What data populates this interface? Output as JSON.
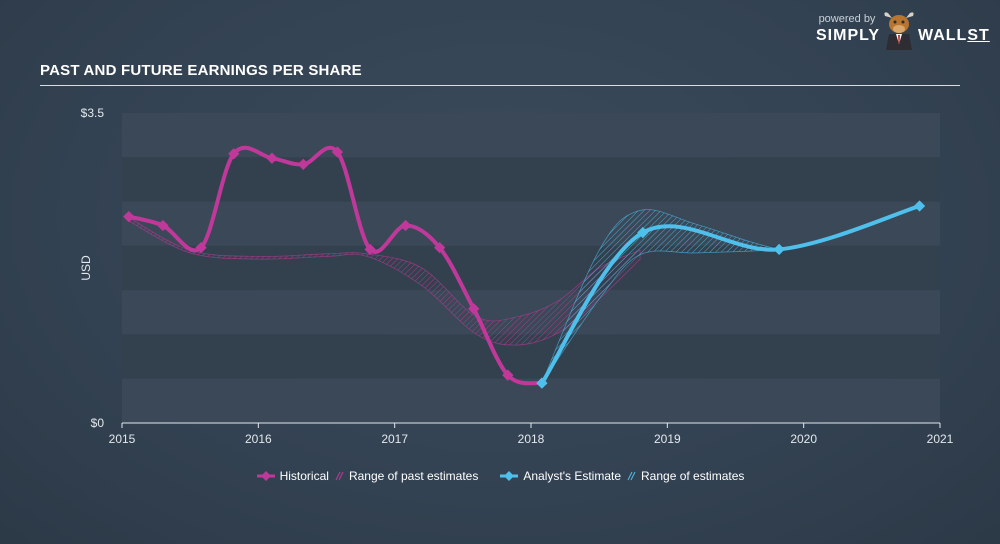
{
  "header": {
    "title": "PAST AND FUTURE EARNINGS PER SHARE"
  },
  "brand": {
    "powered": "powered by",
    "name_left": "SIMPLY",
    "name_right_wall": "WALL",
    "name_right_st": "ST",
    "mascot_icon": "bull-icon"
  },
  "colors": {
    "historical": "#c0399a",
    "estimate": "#4fc0ec",
    "band_alt": "#3a4857",
    "band_base": "#33414f"
  },
  "chart_data": {
    "type": "line",
    "title": "PAST AND FUTURE EARNINGS PER SHARE",
    "ylabel": "USD",
    "xlim": [
      2015,
      2021
    ],
    "ylim": [
      0,
      3.5
    ],
    "y_tick_labels": [
      "$0",
      "$3.5"
    ],
    "x_tick_labels": [
      "2015",
      "2016",
      "2017",
      "2018",
      "2019",
      "2020",
      "2021"
    ],
    "grid": "alternating horizontal bands",
    "legend_placement": "bottom-center",
    "legend": [
      "Historical",
      "Range of past estimates",
      "Analyst's Estimate",
      "Range of estimates"
    ],
    "series": [
      {
        "name": "Historical",
        "x": [
          2015.05,
          2015.3,
          2015.58,
          2015.82,
          2016.1,
          2016.33,
          2016.58,
          2016.82,
          2017.08,
          2017.33,
          2017.58,
          2017.83,
          2018.08
        ],
        "values": [
          2.33,
          2.23,
          1.98,
          3.04,
          2.99,
          2.92,
          3.06,
          1.96,
          2.23,
          1.98,
          1.29,
          0.54,
          0.45
        ]
      },
      {
        "name": "Analyst's Estimate",
        "x": [
          2018.08,
          2018.82,
          2019.82,
          2020.85
        ],
        "values": [
          0.45,
          2.15,
          1.96,
          2.45
        ]
      },
      {
        "name": "Range of past estimates",
        "x": [
          2015.05,
          2015.5,
          2016.0,
          2016.5,
          2016.8,
          2017.2,
          2017.6,
          2017.9,
          2018.2,
          2018.5,
          2018.8
        ],
        "low": [
          2.28,
          1.92,
          1.85,
          1.88,
          1.88,
          1.55,
          1.0,
          0.88,
          1.02,
          1.4,
          1.85
        ],
        "high": [
          2.32,
          1.95,
          1.88,
          1.91,
          1.91,
          1.75,
          1.2,
          1.2,
          1.38,
          1.75,
          1.95
        ]
      },
      {
        "name": "Range of estimates",
        "x": [
          2018.08,
          2018.5,
          2018.8,
          2019.2,
          2019.6,
          2019.82
        ],
        "low": [
          0.45,
          1.4,
          1.9,
          1.92,
          1.94,
          1.96
        ],
        "high": [
          0.45,
          1.95,
          2.4,
          2.25,
          2.05,
          1.96
        ]
      }
    ]
  }
}
